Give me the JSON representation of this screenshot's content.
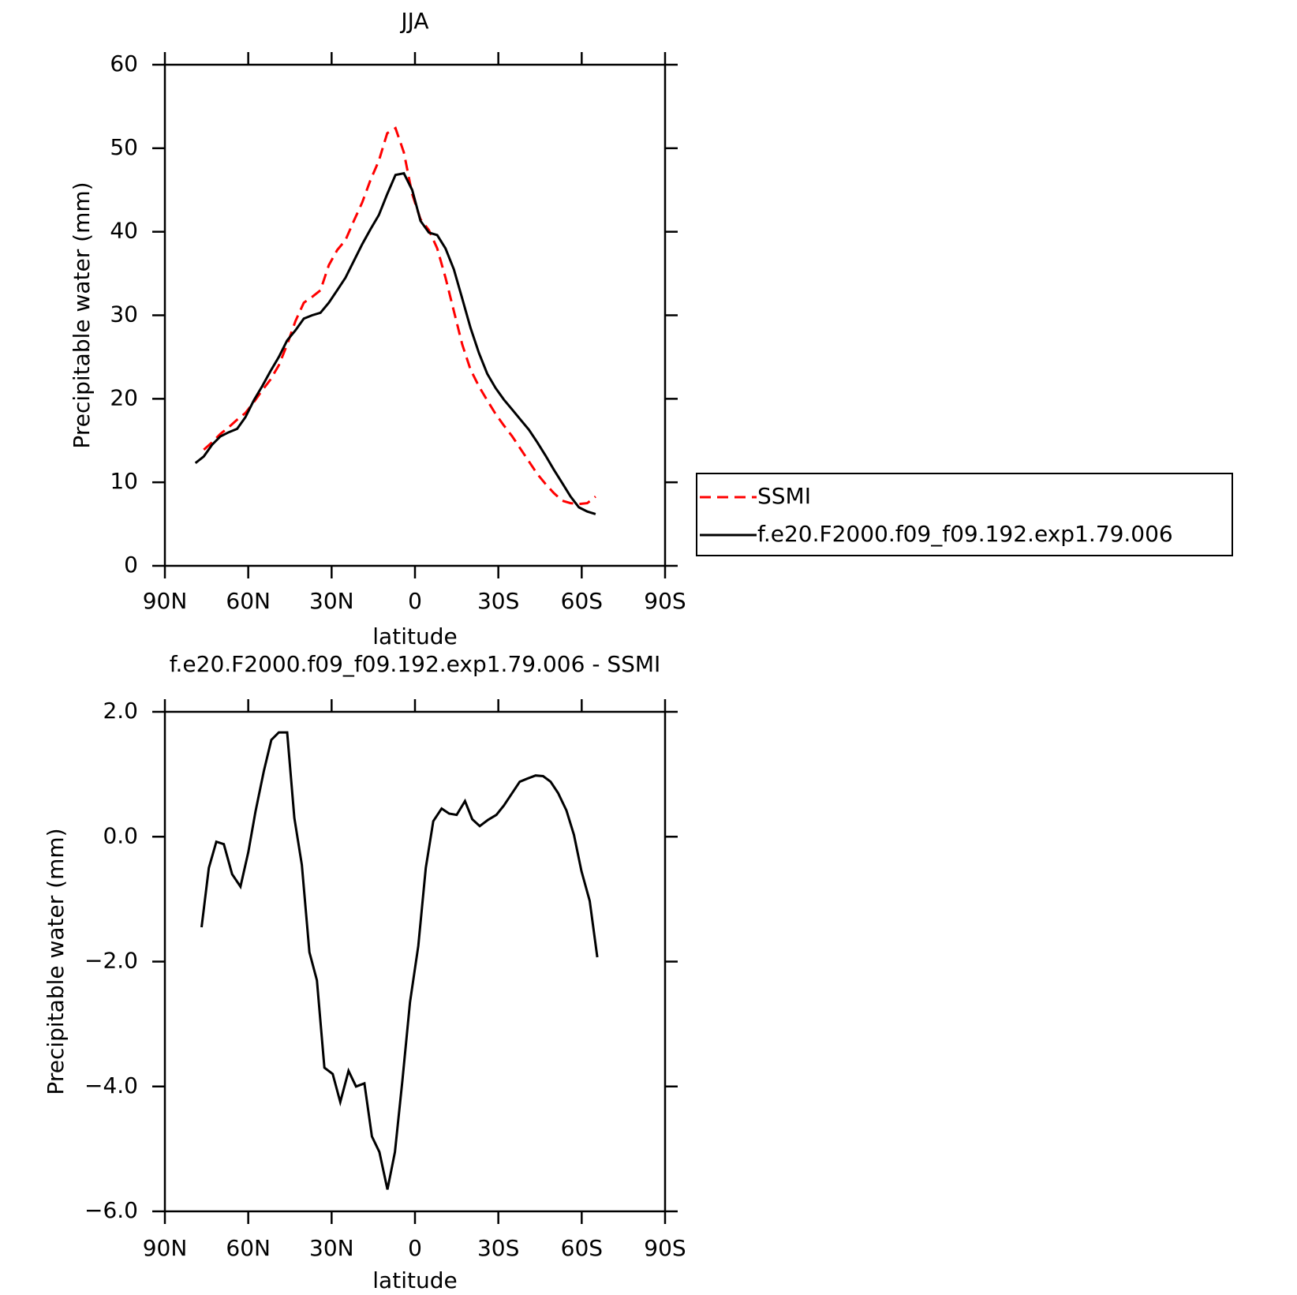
{
  "chart_data": [
    {
      "type": "line",
      "title": "JJA",
      "xlabel": "latitude",
      "ylabel": "Precipitable water (mm)",
      "x": [
        79,
        76,
        73,
        70,
        67,
        64,
        61,
        58,
        55,
        52,
        49,
        46,
        43,
        40,
        37,
        34,
        31,
        28,
        25,
        22,
        19,
        16,
        13,
        10,
        7,
        4,
        1,
        -2,
        -5,
        -8,
        -11,
        -14,
        -17,
        -20,
        -23,
        -26,
        -29,
        -32,
        -35,
        -38,
        -41,
        -44,
        -47,
        -50,
        -53,
        -56,
        -59,
        -62,
        -65
      ],
      "series": [
        {
          "name": "SSMI",
          "color": "#ff0000",
          "dash": true,
          "values": [
            null,
            13.9,
            14.8,
            15.8,
            16.6,
            17.5,
            18.3,
            19.6,
            21.0,
            22.3,
            24.0,
            26.5,
            29.3,
            31.5,
            32.2,
            33.0,
            36.0,
            37.8,
            39.0,
            41.3,
            43.5,
            46.2,
            48.5,
            51.8,
            52.4,
            49.5,
            44.5,
            41.5,
            40.2,
            38.0,
            34.5,
            30.5,
            26.5,
            23.5,
            21.5,
            19.8,
            18.2,
            16.8,
            15.5,
            14.0,
            12.5,
            11.0,
            9.8,
            8.7,
            7.8,
            7.5,
            7.4,
            7.5,
            8.3
          ]
        },
        {
          "name": "f.e20.F2000.f09_f09.192.exp1.79.006",
          "color": "#000000",
          "dash": false,
          "values": [
            12.3,
            13.1,
            14.5,
            15.5,
            16.0,
            16.4,
            17.8,
            19.8,
            21.5,
            23.3,
            25.0,
            27.0,
            28.2,
            29.6,
            30.0,
            30.3,
            31.5,
            33.0,
            34.5,
            36.5,
            38.5,
            40.3,
            42.0,
            44.5,
            46.8,
            47.0,
            45.0,
            41.3,
            39.9,
            39.6,
            38.0,
            35.5,
            32.0,
            28.5,
            25.5,
            23.0,
            21.3,
            19.9,
            18.7,
            17.5,
            16.3,
            14.8,
            13.2,
            11.5,
            9.9,
            8.3,
            7.0,
            6.5,
            6.2
          ]
        }
      ],
      "xlim": [
        90,
        -90
      ],
      "xticks": [
        {
          "value": 90,
          "label": "90N"
        },
        {
          "value": 60,
          "label": "60N"
        },
        {
          "value": 30,
          "label": "30N"
        },
        0,
        {
          "value": -30,
          "label": "30S"
        },
        {
          "value": -60,
          "label": "60S"
        },
        {
          "value": -90,
          "label": "90S"
        }
      ],
      "ylim": [
        0,
        60
      ],
      "yticks": [
        0,
        10,
        20,
        30,
        40,
        50,
        60
      ],
      "legend": "right"
    },
    {
      "type": "line",
      "title": "f.e20.F2000.f09_f09.192.exp1.79.006 - SSMI",
      "xlabel": "latitude",
      "ylabel": "Precipitable water (mm)",
      "x": [
        76.8,
        74.2,
        71.5,
        68.8,
        65.8,
        62.8,
        60,
        57.4,
        54.4,
        51.7,
        49,
        46,
        43.4,
        40.7,
        38,
        35.3,
        32.6,
        29.6,
        26.9,
        23.9,
        21.2,
        18.2,
        15.5,
        12.8,
        9.9,
        7.2,
        4.5,
        1.8,
        -1.2,
        -3.9,
        -6.6,
        -9.6,
        -12.3,
        -15,
        -18,
        -20.6,
        -23.3,
        -26.3,
        -29.3,
        -32,
        -34.7,
        -37.7,
        -40.4,
        -43.4,
        -46.1,
        -48.8,
        -51.5,
        -54.5,
        -57.2,
        -59.9,
        -62.9,
        -65.6
      ],
      "series": [
        {
          "color": "#000000",
          "dash": false,
          "values": [
            -1.45,
            -0.5,
            -0.08,
            -0.12,
            -0.6,
            -0.8,
            -0.25,
            0.4,
            1.05,
            1.55,
            1.67,
            1.67,
            0.3,
            -0.45,
            -1.85,
            -2.3,
            -3.7,
            -3.8,
            -4.25,
            -3.75,
            -4.0,
            -3.95,
            -4.8,
            -5.05,
            -5.65,
            -5.05,
            -3.9,
            -2.65,
            -1.75,
            -0.5,
            0.25,
            0.45,
            0.37,
            0.35,
            0.57,
            0.28,
            0.17,
            0.27,
            0.35,
            0.5,
            0.68,
            0.88,
            0.93,
            0.98,
            0.97,
            0.88,
            0.7,
            0.42,
            0.03,
            -0.55,
            -1.03,
            -1.93
          ]
        }
      ],
      "xlim": [
        90,
        -90
      ],
      "xticks": [
        {
          "value": 90,
          "label": "90N"
        },
        {
          "value": 60,
          "label": "60N"
        },
        {
          "value": 30,
          "label": "30N"
        },
        0,
        {
          "value": -30,
          "label": "30S"
        },
        {
          "value": -60,
          "label": "60S"
        },
        {
          "value": -90,
          "label": "90S"
        }
      ],
      "ylim": [
        -6,
        2
      ],
      "yticks": [
        {
          "value": -6,
          "label": "−6.0"
        },
        {
          "value": -4,
          "label": "−4.0"
        },
        {
          "value": -2,
          "label": "−2.0"
        },
        {
          "value": 0,
          "label": "0.0"
        },
        {
          "value": 2,
          "label": "2.0"
        }
      ]
    }
  ]
}
